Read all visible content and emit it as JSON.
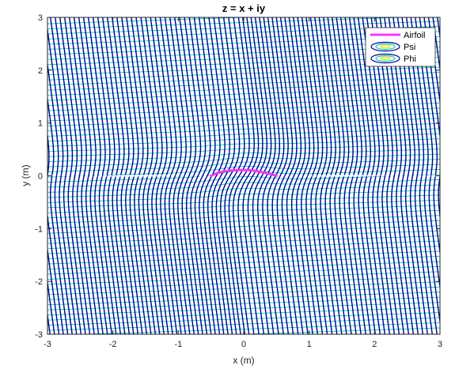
{
  "chart_data": {
    "type": "contour",
    "title": "z = x + iy",
    "xlabel": "x (m)",
    "ylabel": "y (m)",
    "xlim": [
      -3,
      3
    ],
    "ylim": [
      -3,
      3
    ],
    "xticks": [
      -3,
      -2,
      -1,
      0,
      1,
      2,
      3
    ],
    "yticks": [
      -3,
      -2,
      -1,
      0,
      1,
      2,
      3
    ],
    "grid": false,
    "legend_position": "top-right",
    "legend": [
      {
        "label": "Airfoil",
        "color": "#ff33ff",
        "kind": "line"
      },
      {
        "label": "Psi",
        "color": "#00cccc",
        "kind": "contour-ellipse"
      },
      {
        "label": "Phi",
        "color": "#00008b",
        "kind": "contour-ellipse"
      }
    ],
    "series": [
      {
        "name": "Airfoil",
        "color": "#ff33ff",
        "x": [
          -0.5,
          -0.4,
          -0.3,
          -0.2,
          -0.1,
          0.0,
          0.1,
          0.2,
          0.3,
          0.4,
          0.5
        ],
        "y": [
          0.0,
          0.055,
          0.085,
          0.1,
          0.108,
          0.11,
          0.105,
          0.09,
          0.065,
          0.035,
          0.0
        ]
      },
      {
        "name": "Psi",
        "color": "#00cccc",
        "levels_x": [
          -3,
          3
        ]
      },
      {
        "name": "Phi",
        "color": "#00008b",
        "levels_x": [
          -3,
          3
        ]
      }
    ]
  }
}
